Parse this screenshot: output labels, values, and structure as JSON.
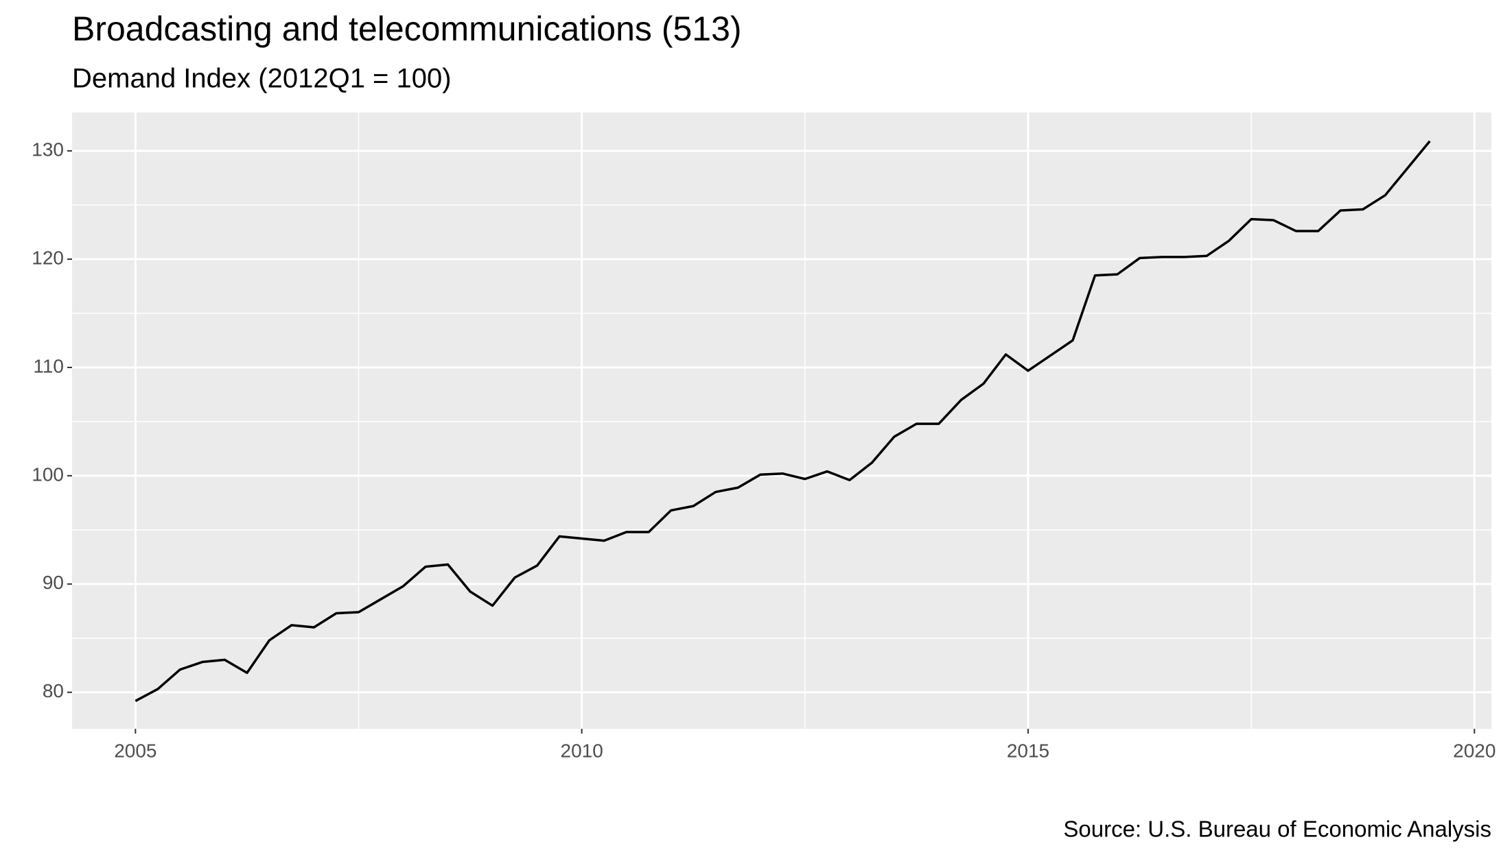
{
  "chart_data": {
    "type": "line",
    "title": "Broadcasting and telecommunications (513)",
    "subtitle": "Demand Index (2012Q1 = 100)",
    "caption": "Source: U.S. Bureau of Economic Analysis",
    "x": [
      2005,
      2005.25,
      2005.5,
      2005.75,
      2006,
      2006.25,
      2006.5,
      2006.75,
      2007,
      2007.25,
      2007.5,
      2007.75,
      2008,
      2008.25,
      2008.5,
      2008.75,
      2009,
      2009.25,
      2009.5,
      2009.75,
      2010,
      2010.25,
      2010.5,
      2010.75,
      2011,
      2011.25,
      2011.5,
      2011.75,
      2012,
      2012.25,
      2012.5,
      2012.75,
      2013,
      2013.25,
      2013.5,
      2013.75,
      2014,
      2014.25,
      2014.5,
      2014.75,
      2015,
      2015.25,
      2015.5,
      2015.75,
      2016,
      2016.25,
      2016.5,
      2016.75,
      2017,
      2017.25,
      2017.5,
      2017.75,
      2018,
      2018.25,
      2018.5,
      2018.75,
      2019,
      2019.25,
      2019.5
    ],
    "series": [
      {
        "color": "#000000",
        "values": [
          79.2,
          80.3,
          82.1,
          82.8,
          83.0,
          81.8,
          84.8,
          86.2,
          86.0,
          87.3,
          87.4,
          88.6,
          89.8,
          91.6,
          91.8,
          89.3,
          88.0,
          90.6,
          91.7,
          94.4,
          94.2,
          94.0,
          94.8,
          94.8,
          96.8,
          97.2,
          98.5,
          98.9,
          100.1,
          100.2,
          99.7,
          100.4,
          99.6,
          101.2,
          103.6,
          104.8,
          104.8,
          107.0,
          108.5,
          111.2,
          109.7,
          111.1,
          112.5,
          118.5,
          118.6,
          120.1,
          120.2,
          120.2,
          120.3,
          121.7,
          123.7,
          123.6,
          122.6,
          122.6,
          124.5,
          124.6,
          125.9,
          128.4,
          130.9
        ]
      }
    ],
    "xlim": [
      2004.29,
      2020.19
    ],
    "ylim": [
      76.63,
      133.55
    ],
    "xticks": [
      2005,
      2010,
      2015,
      2020
    ],
    "yticks": [
      80,
      90,
      100,
      110,
      120,
      130
    ],
    "grid": true
  }
}
